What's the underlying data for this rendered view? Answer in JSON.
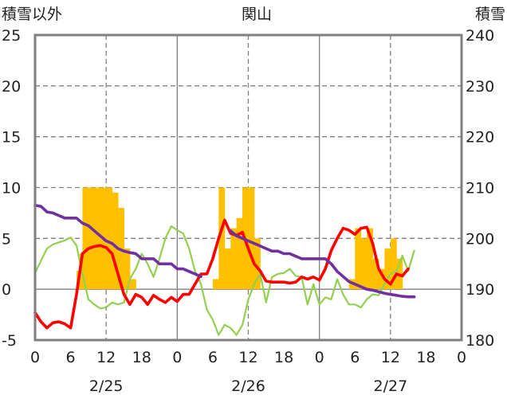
{
  "chart_data": {
    "type": "bar+line",
    "title": "関山",
    "ylabel_left": "積雪以外",
    "ylabel_right": "積雪",
    "ylim_left": [
      -5,
      25
    ],
    "ylim_right": [
      180,
      240
    ],
    "yticks_left": [
      -5,
      0,
      5,
      10,
      15,
      20,
      25
    ],
    "yticks_right": [
      180,
      190,
      200,
      210,
      220,
      230,
      240
    ],
    "xlim_hours": [
      0,
      72
    ],
    "xtick_labels": [
      "0",
      "6",
      "12",
      "18",
      "0",
      "6",
      "12",
      "18",
      "0",
      "6",
      "12",
      "18",
      "0"
    ],
    "date_labels": [
      "2/25",
      "2/26",
      "2/27"
    ],
    "grid": true,
    "colors": {
      "bar": "#FFC000",
      "red_line": "#FF0000",
      "green_line": "#92D050",
      "purple_line": "#7030A0",
      "axis": "#808080",
      "grid": "#808080"
    },
    "bars_precip": [
      [
        7.0,
        1.8
      ],
      [
        7.5,
        3.5
      ],
      [
        8.0,
        10
      ],
      [
        9.0,
        10
      ],
      [
        10.0,
        10
      ],
      [
        11.0,
        10
      ],
      [
        12.0,
        10
      ],
      [
        13.0,
        9.5
      ],
      [
        14.0,
        8
      ],
      [
        15.0,
        4
      ],
      [
        16.0,
        1
      ],
      [
        30.0,
        1
      ],
      [
        31.0,
        10
      ],
      [
        32.0,
        4
      ],
      [
        33.0,
        6
      ],
      [
        34.0,
        7
      ],
      [
        35.0,
        10
      ],
      [
        36.0,
        10
      ],
      [
        37.0,
        5
      ],
      [
        53.0,
        1
      ],
      [
        54.0,
        6
      ],
      [
        55.0,
        5
      ],
      [
        56.0,
        6
      ],
      [
        57.0,
        3
      ],
      [
        58.0,
        2
      ],
      [
        59.0,
        4
      ],
      [
        60.0,
        5
      ],
      [
        61.0,
        3
      ]
    ],
    "red_line": [
      [
        0,
        -2.3
      ],
      [
        1,
        -3.2
      ],
      [
        2,
        -3.8
      ],
      [
        3,
        -3.3
      ],
      [
        4,
        -3.2
      ],
      [
        5,
        -3.4
      ],
      [
        6,
        -3.8
      ],
      [
        7,
        -0.5
      ],
      [
        8,
        3.5
      ],
      [
        9,
        4.0
      ],
      [
        10,
        4.2
      ],
      [
        11,
        4.3
      ],
      [
        12,
        4.1
      ],
      [
        13,
        3.5
      ],
      [
        14,
        1.5
      ],
      [
        15,
        -0.5
      ],
      [
        16,
        -1.5
      ],
      [
        17,
        -0.5
      ],
      [
        18,
        -0.8
      ],
      [
        19,
        -1.5
      ],
      [
        20,
        -0.6
      ],
      [
        21,
        -1.0
      ],
      [
        22,
        -1.3
      ],
      [
        23,
        -0.8
      ],
      [
        24,
        -1.2
      ],
      [
        25,
        -0.5
      ],
      [
        26,
        -0.5
      ],
      [
        27,
        0.5
      ],
      [
        28,
        1.5
      ],
      [
        29,
        1.5
      ],
      [
        30,
        3.0
      ],
      [
        31,
        5.0
      ],
      [
        32,
        6.8
      ],
      [
        33,
        5.5
      ],
      [
        34,
        5.3
      ],
      [
        35,
        5.6
      ],
      [
        36,
        4.0
      ],
      [
        37,
        2.5
      ],
      [
        38,
        1.8
      ],
      [
        39,
        0.8
      ],
      [
        40,
        0.7
      ],
      [
        41,
        0.7
      ],
      [
        42,
        0.7
      ],
      [
        43,
        0.6
      ],
      [
        44,
        0.7
      ],
      [
        45,
        1.2
      ],
      [
        46,
        1.0
      ],
      [
        47,
        1.2
      ],
      [
        48,
        0.9
      ],
      [
        49,
        2.0
      ],
      [
        50,
        3.8
      ],
      [
        51,
        5.0
      ],
      [
        52,
        6.0
      ],
      [
        53,
        5.8
      ],
      [
        54,
        5.4
      ],
      [
        55,
        6.0
      ],
      [
        56,
        6.1
      ],
      [
        57,
        4.5
      ],
      [
        58,
        2.0
      ],
      [
        59,
        1.0
      ],
      [
        60,
        0.5
      ],
      [
        61,
        1.5
      ],
      [
        62,
        1.3
      ],
      [
        63,
        2.0
      ]
    ],
    "green_line": [
      [
        0,
        1.6
      ],
      [
        1,
        2.8
      ],
      [
        2,
        4.0
      ],
      [
        3,
        4.4
      ],
      [
        4,
        4.6
      ],
      [
        5,
        4.8
      ],
      [
        6,
        5.1
      ],
      [
        7,
        4.3
      ],
      [
        8,
        1.5
      ],
      [
        9,
        -1.0
      ],
      [
        10,
        -1.5
      ],
      [
        11,
        -1.9
      ],
      [
        12,
        -1.8
      ],
      [
        13,
        -1.3
      ],
      [
        14,
        -1.5
      ],
      [
        15,
        -1.3
      ],
      [
        16,
        1.0
      ],
      [
        17,
        2.0
      ],
      [
        18,
        3.5
      ],
      [
        19,
        2.5
      ],
      [
        20,
        1.2
      ],
      [
        21,
        3.0
      ],
      [
        22,
        5.0
      ],
      [
        23,
        6.2
      ],
      [
        24,
        5.8
      ],
      [
        25,
        5.5
      ],
      [
        26,
        4.0
      ],
      [
        27,
        1.8
      ],
      [
        28,
        0.5
      ],
      [
        29,
        -2.0
      ],
      [
        30,
        -3.0
      ],
      [
        31,
        -4.5
      ],
      [
        32,
        -3.5
      ],
      [
        33,
        -3.8
      ],
      [
        34,
        -4.5
      ],
      [
        35,
        -3.5
      ],
      [
        36,
        -1.0
      ],
      [
        37,
        0.5
      ],
      [
        38,
        1.5
      ],
      [
        39,
        -1.3
      ],
      [
        40,
        1.2
      ],
      [
        41,
        1.5
      ],
      [
        42,
        1.6
      ],
      [
        43,
        2.0
      ],
      [
        44,
        1.3
      ],
      [
        45,
        1.2
      ],
      [
        46,
        -1.5
      ],
      [
        47,
        0.5
      ],
      [
        48,
        -1.5
      ],
      [
        49,
        -0.8
      ],
      [
        50,
        -1.0
      ],
      [
        51,
        1.0
      ],
      [
        52,
        -0.5
      ],
      [
        53,
        -1.5
      ],
      [
        54,
        -1.5
      ],
      [
        55,
        -1.8
      ],
      [
        56,
        -1.0
      ],
      [
        57,
        -0.5
      ],
      [
        58,
        -0.6
      ],
      [
        59,
        0.5
      ],
      [
        60,
        1.5
      ],
      [
        61,
        1.8
      ],
      [
        62,
        3.3
      ],
      [
        63,
        1.8
      ],
      [
        64,
        3.8
      ]
    ],
    "purple_line": [
      [
        0,
        206.5
      ],
      [
        1,
        206.3
      ],
      [
        2,
        205.2
      ],
      [
        3,
        205.0
      ],
      [
        4,
        204.5
      ],
      [
        5,
        204.0
      ],
      [
        6,
        204.0
      ],
      [
        7,
        204.0
      ],
      [
        8,
        203.0
      ],
      [
        9,
        202.5
      ],
      [
        10,
        201.5
      ],
      [
        11,
        200.5
      ],
      [
        12,
        199.5
      ],
      [
        13,
        199.0
      ],
      [
        14,
        198.0
      ],
      [
        15,
        197.5
      ],
      [
        16,
        197.2
      ],
      [
        17,
        197.0
      ],
      [
        18,
        196.0
      ],
      [
        19,
        196.0
      ],
      [
        20,
        196.0
      ],
      [
        21,
        195.0
      ],
      [
        22,
        195.0
      ],
      [
        23,
        195.0
      ],
      [
        24,
        194.0
      ],
      [
        25,
        194.0
      ],
      [
        26,
        193.5
      ],
      [
        27,
        193.0
      ],
      [
        28,
        192.5
      ],
      [
        33,
        201.5
      ],
      [
        34,
        200.5
      ],
      [
        35,
        200.0
      ],
      [
        36,
        199.5
      ],
      [
        37,
        199.0
      ],
      [
        38,
        198.5
      ],
      [
        39,
        198.0
      ],
      [
        40,
        197.5
      ],
      [
        41,
        197.5
      ],
      [
        42,
        197.0
      ],
      [
        43,
        197.0
      ],
      [
        44,
        196.5
      ],
      [
        45,
        196.0
      ],
      [
        46,
        196.0
      ],
      [
        47,
        196.0
      ],
      [
        48,
        196.0
      ],
      [
        49,
        196.0
      ],
      [
        50,
        195.0
      ],
      [
        51,
        193.5
      ],
      [
        52,
        192.5
      ],
      [
        53,
        191.5
      ],
      [
        54,
        191.0
      ],
      [
        55,
        190.5
      ],
      [
        56,
        190.0
      ],
      [
        57,
        189.8
      ],
      [
        58,
        189.5
      ],
      [
        59,
        189.2
      ],
      [
        60,
        189.0
      ],
      [
        61,
        188.8
      ],
      [
        62,
        188.6
      ],
      [
        63,
        188.5
      ],
      [
        64,
        188.5
      ]
    ]
  }
}
